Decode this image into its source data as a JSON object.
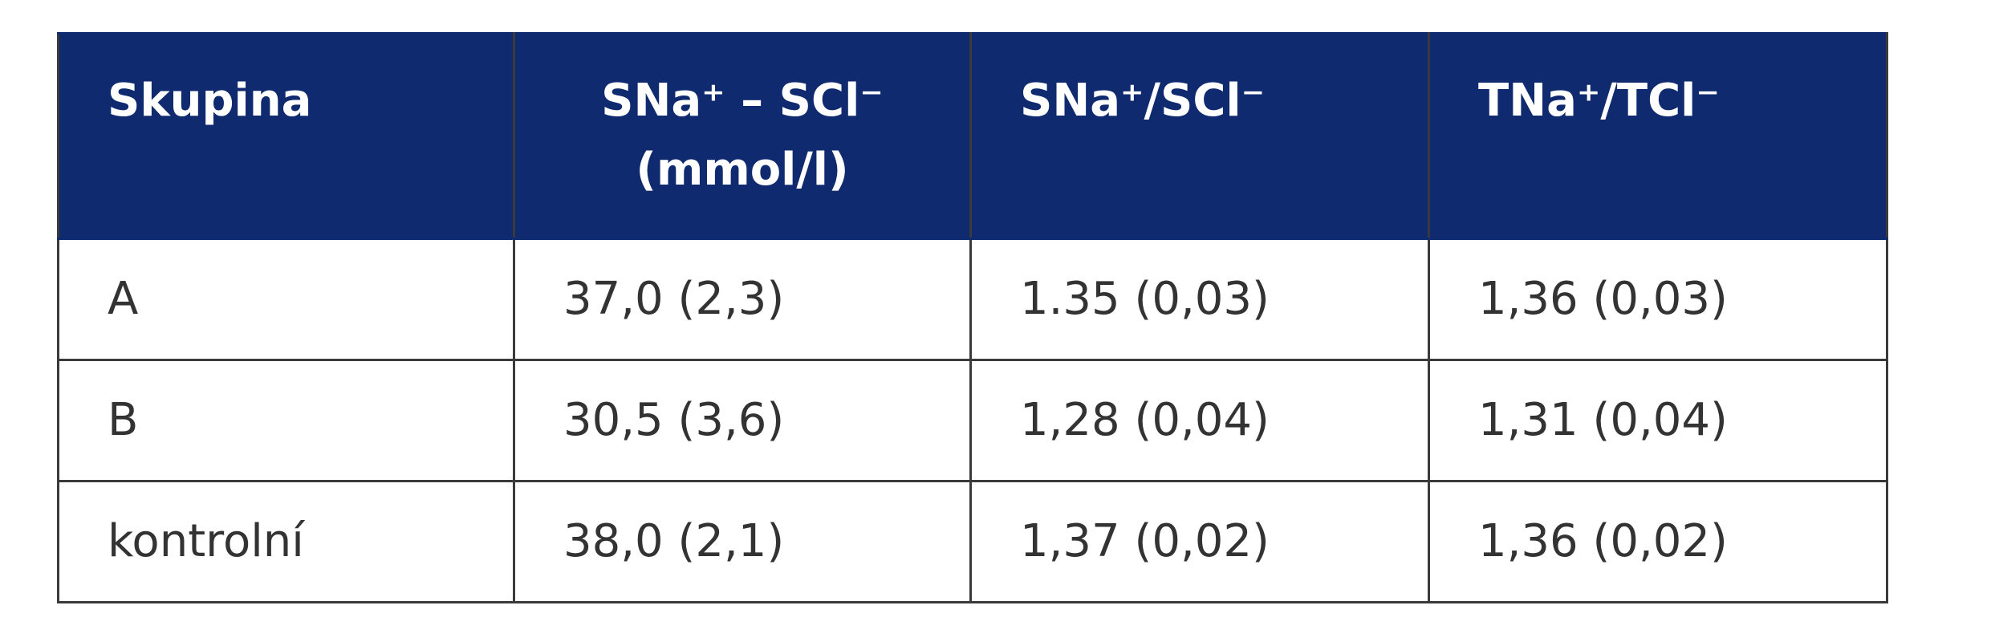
{
  "table": {
    "header": [
      "Skupina",
      [
        "SNa⁺ – SCl⁻",
        "(mmol/l)"
      ],
      "SNa⁺/SCl⁻",
      "TNa⁺/TCl⁻"
    ],
    "rows": [
      [
        "A",
        "37,0 (2,3)",
        "1.35 (0,03)",
        "1,36 (0,03)"
      ],
      [
        "B",
        "30,5 (3,6)",
        "1,28 (0,04)",
        "1,31 (0,04)"
      ],
      [
        "kontrolní",
        "38,0 (2,1)",
        "1,37 (0,02)",
        "1,36 (0,02)"
      ]
    ]
  }
}
